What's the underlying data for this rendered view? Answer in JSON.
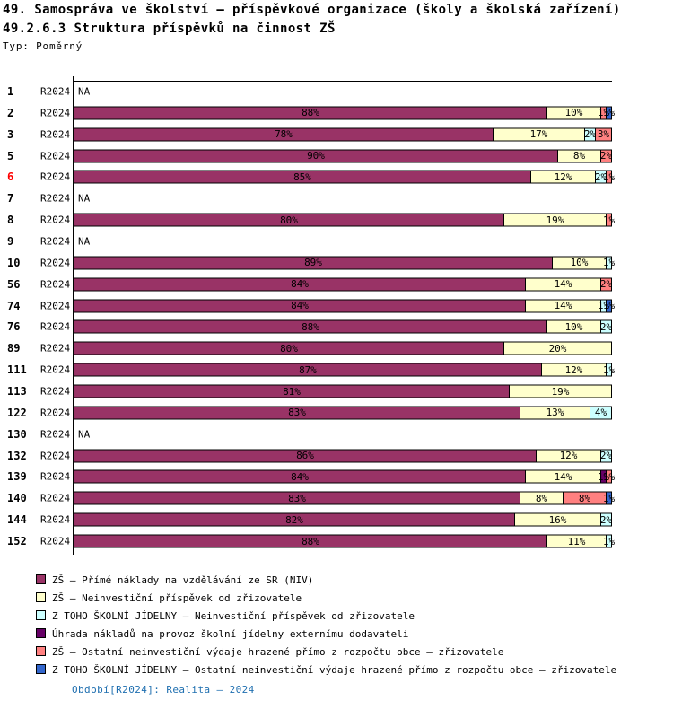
{
  "title": "49. Samospráva ve školství – příspěvkové organizace (školy a školská zařízení)",
  "subtitle": "49.2.6.3 Struktura příspěvků na činnost ZŠ",
  "type_label": "Typ: Poměrný",
  "footer": "Období[R2024]: Realita – 2024",
  "colors": {
    "axis": "#000000",
    "highlight_row_label": "#ff0000",
    "footer_text": "#1f6fb0",
    "series": [
      "#993366",
      "#ffffcc",
      "#ccffff",
      "#660066",
      "#ff8080",
      "#3366cc"
    ]
  },
  "chart_data": {
    "type": "bar",
    "orientation": "horizontal-stacked",
    "xlim": [
      0,
      100
    ],
    "unit": "%",
    "period_label": "R2024",
    "na_label": "NA",
    "legend_position": "bottom-left",
    "legend": [
      {
        "name": "ZŠ – Přímé náklady na vzdělávání ze SR (NIV)",
        "color": "#993366"
      },
      {
        "name": "ZŠ – Neinvestiční příspěvek od zřizovatele",
        "color": "#ffffcc"
      },
      {
        "name": "Z TOHO ŠKOLNÍ JÍDELNY – Neinvestiční příspěvek od zřizovatele",
        "color": "#ccffff"
      },
      {
        "name": "Úhrada nákladů na provoz školní jídelny externímu dodavateli",
        "color": "#660066"
      },
      {
        "name": "ZŠ – Ostatní neinvestiční výdaje hrazené přímo z rozpočtu obce – zřizovatele",
        "color": "#ff8080"
      },
      {
        "name": "Z TOHO ŠKOLNÍ JÍDELNY – Ostatní neinvestiční výdaje hrazené přímo z rozpočtu obce – zřizovatele",
        "color": "#3366cc"
      }
    ],
    "rows": [
      {
        "id": "1",
        "highlight": false,
        "segments": null
      },
      {
        "id": "2",
        "highlight": false,
        "segments": [
          [
            0,
            88
          ],
          [
            1,
            10
          ],
          [
            4,
            1
          ],
          [
            5,
            1
          ]
        ]
      },
      {
        "id": "3",
        "highlight": false,
        "segments": [
          [
            0,
            78
          ],
          [
            1,
            17
          ],
          [
            2,
            2
          ],
          [
            4,
            3
          ]
        ]
      },
      {
        "id": "5",
        "highlight": false,
        "segments": [
          [
            0,
            90
          ],
          [
            1,
            8
          ],
          [
            4,
            2
          ]
        ]
      },
      {
        "id": "6",
        "highlight": true,
        "segments": [
          [
            0,
            85
          ],
          [
            1,
            12
          ],
          [
            2,
            2
          ],
          [
            4,
            1
          ]
        ]
      },
      {
        "id": "7",
        "highlight": false,
        "segments": null
      },
      {
        "id": "8",
        "highlight": false,
        "segments": [
          [
            0,
            80
          ],
          [
            1,
            19
          ],
          [
            4,
            1
          ]
        ]
      },
      {
        "id": "9",
        "highlight": false,
        "segments": null
      },
      {
        "id": "10",
        "highlight": false,
        "segments": [
          [
            0,
            89
          ],
          [
            1,
            10
          ],
          [
            2,
            1
          ]
        ]
      },
      {
        "id": "56",
        "highlight": false,
        "segments": [
          [
            0,
            84
          ],
          [
            1,
            14
          ],
          [
            4,
            2
          ]
        ]
      },
      {
        "id": "74",
        "highlight": false,
        "segments": [
          [
            0,
            84
          ],
          [
            1,
            14
          ],
          [
            2,
            1
          ],
          [
            5,
            1
          ]
        ]
      },
      {
        "id": "76",
        "highlight": false,
        "segments": [
          [
            0,
            88
          ],
          [
            1,
            10
          ],
          [
            2,
            2
          ]
        ]
      },
      {
        "id": "89",
        "highlight": false,
        "segments": [
          [
            0,
            80
          ],
          [
            1,
            20
          ]
        ]
      },
      {
        "id": "111",
        "highlight": false,
        "segments": [
          [
            0,
            87
          ],
          [
            1,
            12
          ],
          [
            2,
            1
          ]
        ]
      },
      {
        "id": "113",
        "highlight": false,
        "segments": [
          [
            0,
            81
          ],
          [
            1,
            19
          ]
        ]
      },
      {
        "id": "122",
        "highlight": false,
        "segments": [
          [
            0,
            83
          ],
          [
            1,
            13
          ],
          [
            2,
            4
          ]
        ]
      },
      {
        "id": "130",
        "highlight": false,
        "segments": null
      },
      {
        "id": "132",
        "highlight": false,
        "segments": [
          [
            0,
            86
          ],
          [
            1,
            12
          ],
          [
            2,
            2
          ]
        ]
      },
      {
        "id": "139",
        "highlight": false,
        "segments": [
          [
            0,
            84
          ],
          [
            1,
            14
          ],
          [
            3,
            1
          ],
          [
            4,
            1
          ]
        ]
      },
      {
        "id": "140",
        "highlight": false,
        "segments": [
          [
            0,
            83
          ],
          [
            1,
            8
          ],
          [
            4,
            8
          ],
          [
            5,
            1
          ]
        ]
      },
      {
        "id": "144",
        "highlight": false,
        "segments": [
          [
            0,
            82
          ],
          [
            1,
            16
          ],
          [
            2,
            2
          ]
        ]
      },
      {
        "id": "152",
        "highlight": false,
        "segments": [
          [
            0,
            88
          ],
          [
            1,
            11
          ],
          [
            2,
            1
          ]
        ]
      }
    ]
  }
}
